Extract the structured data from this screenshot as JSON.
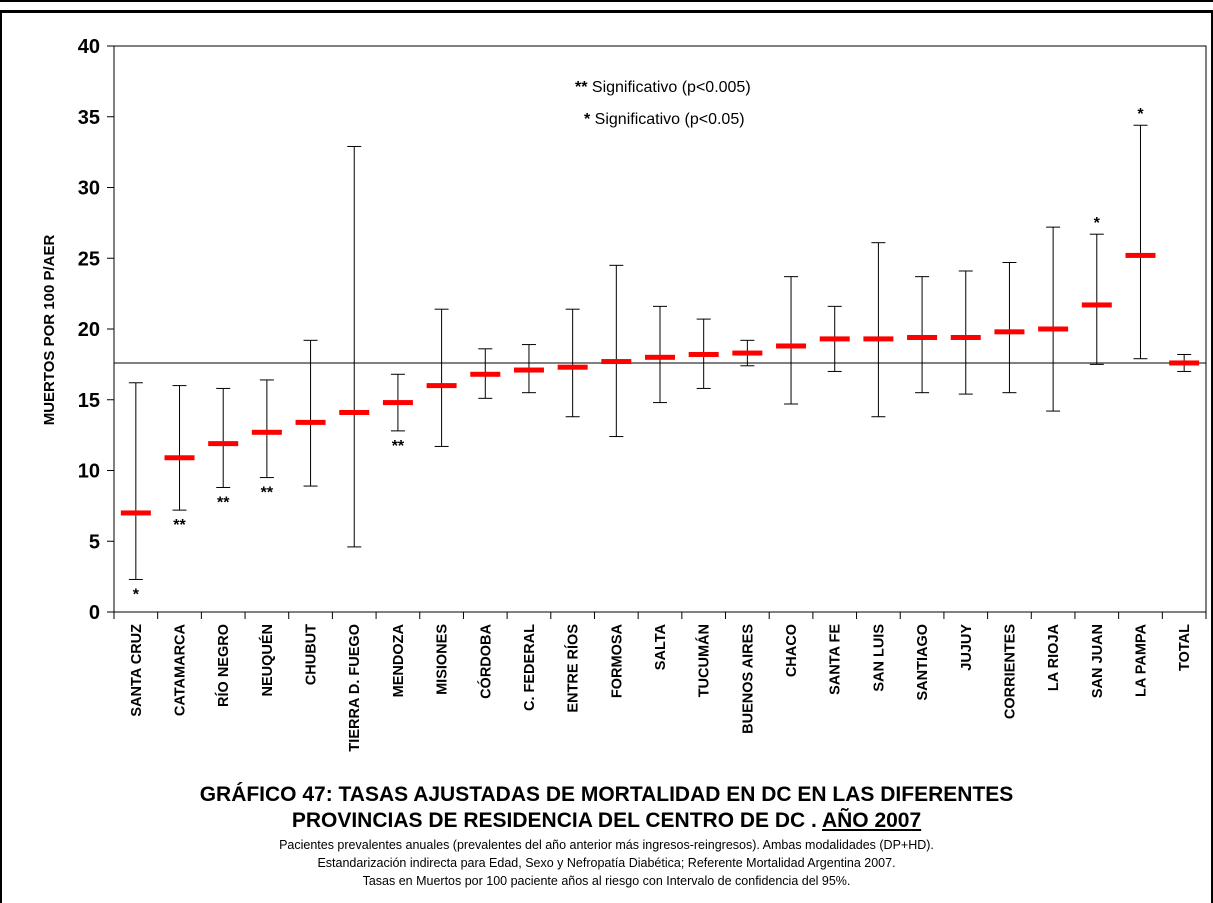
{
  "chart_data": {
    "type": "errorbar",
    "ylabel": "MUERTOS POR 100 P/AER",
    "ylim": [
      0,
      40
    ],
    "yticks": [
      0,
      5,
      10,
      15,
      20,
      25,
      30,
      35,
      40
    ],
    "reference_line": 17.6,
    "legend": [
      "** Significativo (p<0.005)",
      "* Significativo (p<0.05)"
    ],
    "categories": [
      "SANTA CRUZ",
      "CATAMARCA",
      "RÍO NEGRO",
      "NEUQUÉN",
      "CHUBUT",
      "TIERRA D. FUEGO",
      "MENDOZA",
      "MISIONES",
      "CÓRDOBA",
      "C. FEDERAL",
      "ENTRE RÍOS",
      "FORMOSA",
      "SALTA",
      "TUCUMÁN",
      "BUENOS AIRES",
      "CHACO",
      "SANTA FE",
      "SAN LUIS",
      "SANTIAGO",
      "JUJUY",
      "CORRIENTES",
      "LA RIOJA",
      "SAN JUAN",
      "LA PAMPA",
      "TOTAL"
    ],
    "values": [
      7.0,
      10.9,
      11.9,
      12.7,
      13.4,
      14.1,
      14.8,
      16.0,
      16.8,
      17.1,
      17.3,
      17.7,
      18.0,
      18.2,
      18.3,
      18.8,
      19.3,
      19.3,
      19.4,
      19.4,
      19.8,
      20.0,
      21.7,
      25.2,
      17.6
    ],
    "lower": [
      2.3,
      7.2,
      8.8,
      9.5,
      8.9,
      4.6,
      12.8,
      11.7,
      15.1,
      15.5,
      13.8,
      12.4,
      14.8,
      15.8,
      17.4,
      14.7,
      17.0,
      13.8,
      15.5,
      15.4,
      15.5,
      14.2,
      17.5,
      17.9,
      17.0
    ],
    "upper": [
      16.2,
      16.0,
      15.8,
      16.4,
      19.2,
      32.9,
      16.8,
      21.4,
      18.6,
      18.9,
      21.4,
      24.5,
      21.6,
      20.7,
      19.2,
      23.7,
      21.6,
      26.1,
      23.7,
      24.1,
      24.7,
      27.2,
      26.7,
      34.4,
      18.2
    ],
    "significance": [
      "*",
      "**",
      "**",
      "**",
      "",
      "",
      "**",
      "",
      "",
      "",
      "",
      "",
      "",
      "",
      "",
      "",
      "",
      "",
      "",
      "",
      "",
      "",
      "*",
      "*",
      ""
    ],
    "significance_position": [
      "below",
      "below",
      "below",
      "below",
      "",
      "",
      "below",
      "",
      "",
      "",
      "",
      "",
      "",
      "",
      "",
      "",
      "",
      "",
      "",
      "",
      "",
      "",
      "above",
      "above",
      ""
    ],
    "series_color": "#ff0000"
  },
  "caption": {
    "title_line1": "GRÁFICO 47:  TASAS AJUSTADAS DE MORTALIDAD EN DC  EN LAS DIFERENTES",
    "title_line2_prefix": "PROVINCIAS DE RESIDENCIA DEL CENTRO DE DC . ",
    "title_line2_year": "AÑO 2007",
    "note1": "Pacientes prevalentes anuales (prevalentes del año anterior más ingresos-reingresos). Ambas modalidades (DP+HD).",
    "note2": "Estandarización indirecta para Edad, Sexo y Nefropatía Diabética; Referente Mortalidad Argentina 2007.",
    "note3": "Tasas en Muertos por 100 paciente años al riesgo con Intervalo de confidencia del 95%."
  }
}
